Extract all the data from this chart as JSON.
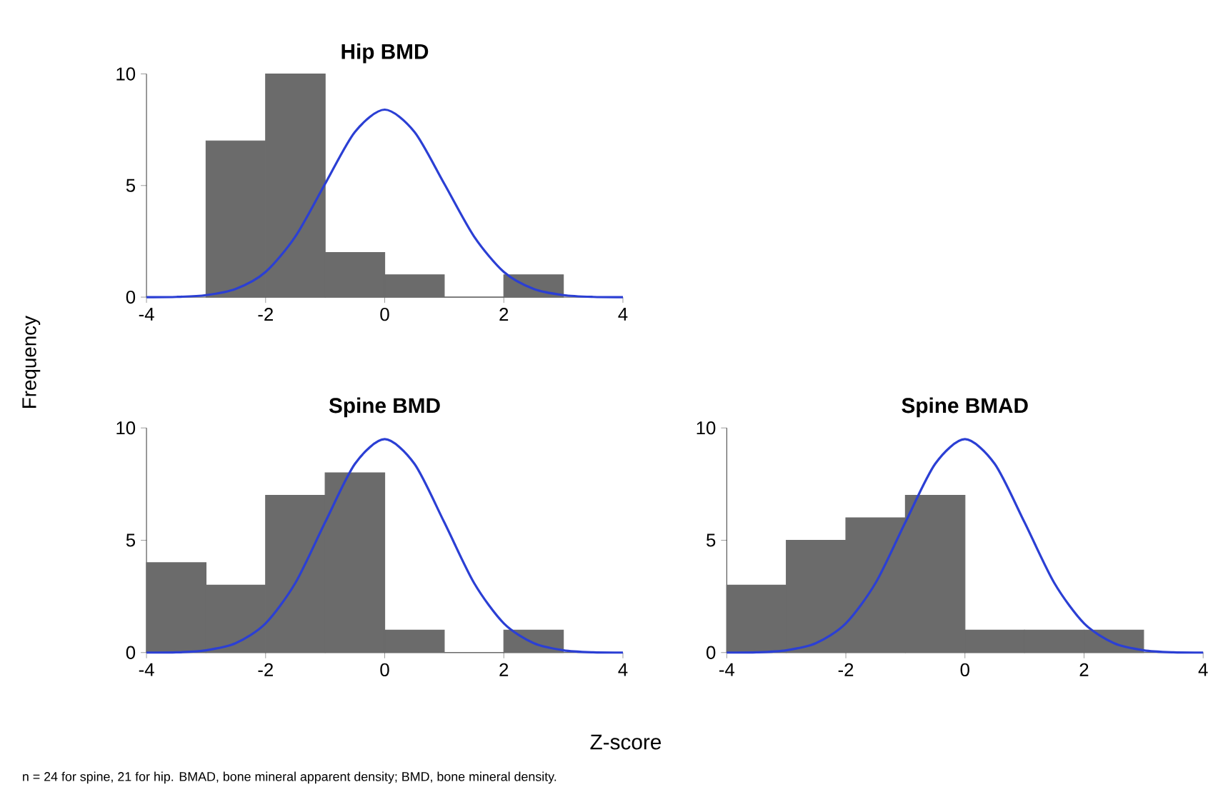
{
  "chart_data": [
    {
      "type": "histogram",
      "title": "Hip BMD",
      "bins": [
        -3,
        -2,
        -1,
        0,
        1,
        2,
        3
      ],
      "values": [
        7,
        10,
        2,
        1,
        0,
        1
      ],
      "color": "#6b6b6b",
      "xlim": [
        -4,
        4
      ],
      "ylim": [
        0,
        10
      ],
      "xticks": [
        -4,
        -2,
        0,
        2,
        4
      ],
      "yticks": [
        0,
        5,
        10
      ],
      "grid": false,
      "series": [
        {
          "type": "line",
          "color": "#2b3fd4",
          "x": [
            -4,
            -3.5,
            -3,
            -2.5,
            -2,
            -1.5,
            -1,
            -0.5,
            0,
            0.5,
            1,
            1.5,
            2,
            2.5,
            3,
            3.5,
            4
          ],
          "values": [
            0,
            0.01,
            0.09,
            0.37,
            1.13,
            2.72,
            5.08,
            7.4,
            8.4,
            7.4,
            5.08,
            2.72,
            1.13,
            0.37,
            0.09,
            0.01,
            0
          ]
        }
      ]
    },
    {
      "type": "histogram",
      "title": "Spine BMD",
      "bins": [
        -4,
        -3,
        -2,
        -1,
        0,
        1,
        2,
        3
      ],
      "values": [
        4,
        3,
        7,
        8,
        1,
        0,
        1
      ],
      "color": "#6b6b6b",
      "xlim": [
        -4,
        4
      ],
      "ylim": [
        0,
        10
      ],
      "xticks": [
        -4,
        -2,
        0,
        2,
        4
      ],
      "yticks": [
        0,
        5,
        10
      ],
      "grid": false,
      "series": [
        {
          "type": "line",
          "color": "#2b3fd4",
          "x": [
            -4,
            -3.5,
            -3,
            -2.5,
            -2,
            -1.5,
            -1,
            -0.5,
            0,
            0.5,
            1,
            1.5,
            2,
            2.5,
            3,
            3.5,
            4
          ],
          "values": [
            0,
            0.01,
            0.1,
            0.42,
            1.3,
            3.1,
            5.8,
            8.4,
            9.5,
            8.4,
            5.8,
            3.1,
            1.3,
            0.42,
            0.1,
            0.01,
            0
          ]
        }
      ]
    },
    {
      "type": "histogram",
      "title": "Spine BMAD",
      "bins": [
        -4,
        -3,
        -2,
        -1,
        0,
        1,
        2,
        3
      ],
      "values": [
        3,
        5,
        6,
        7,
        1,
        1,
        1
      ],
      "color": "#6b6b6b",
      "xlim": [
        -4,
        4
      ],
      "ylim": [
        0,
        10
      ],
      "xticks": [
        -4,
        -2,
        0,
        2,
        4
      ],
      "yticks": [
        0,
        5,
        10
      ],
      "grid": false,
      "series": [
        {
          "type": "line",
          "color": "#2b3fd4",
          "x": [
            -4,
            -3.5,
            -3,
            -2.5,
            -2,
            -1.5,
            -1,
            -0.5,
            0,
            0.5,
            1,
            1.5,
            2,
            2.5,
            3,
            3.5,
            4
          ],
          "values": [
            0,
            0.01,
            0.1,
            0.42,
            1.3,
            3.1,
            5.8,
            8.4,
            9.5,
            8.4,
            5.8,
            3.1,
            1.3,
            0.42,
            0.1,
            0.01,
            0
          ]
        }
      ]
    },
    {
      "type": "other",
      "ylabel": "Frequency",
      "xlabel": "Z-score",
      "annotations": [
        "n = 24 for spine, 21 for hip. BMAD, bone mineral apparent density; BMD, bone mineral density."
      ]
    }
  ]
}
